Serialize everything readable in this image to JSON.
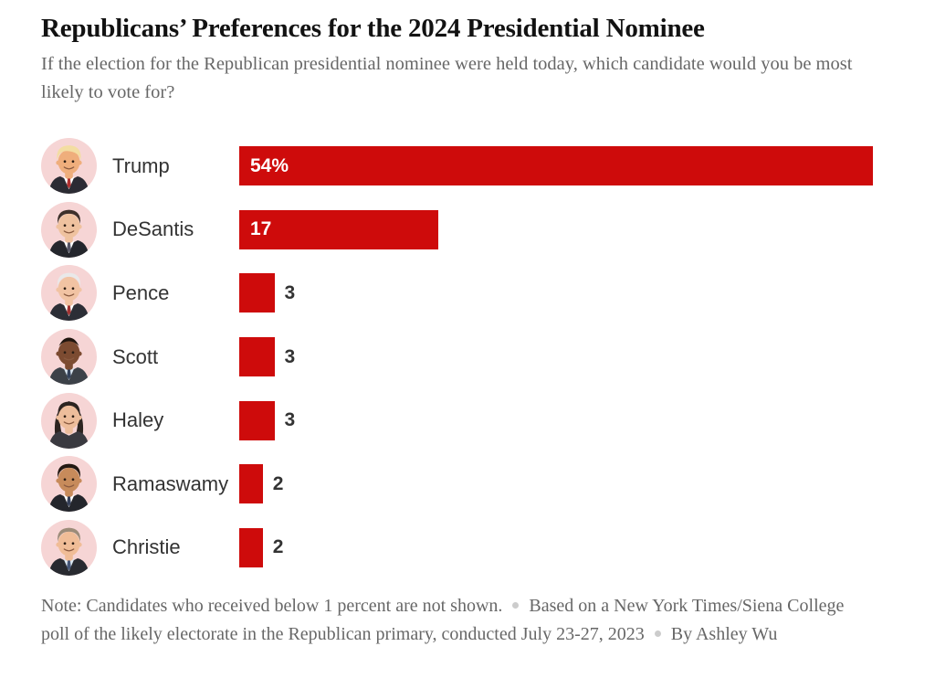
{
  "header": {
    "title": "Republicans’ Preferences for the 2024 Presidential Nominee",
    "subtitle": "If the election for the Republican presidential nominee were held today, which candidate would you be most likely to vote for?"
  },
  "chart_data": {
    "type": "bar",
    "orientation": "horizontal",
    "categories": [
      "Trump",
      "DeSantis",
      "Pence",
      "Scott",
      "Haley",
      "Ramaswamy",
      "Christie"
    ],
    "values": [
      54,
      17,
      3,
      3,
      3,
      2,
      2
    ],
    "value_labels": [
      "54%",
      "17",
      "3",
      "3",
      "3",
      "2",
      "2"
    ],
    "value_label_inside": [
      true,
      true,
      false,
      false,
      false,
      false,
      false
    ],
    "xlim": [
      0,
      54
    ],
    "bar_color": "#ce0b0b",
    "grid": false,
    "legend": false,
    "avatar_background": "#f6d5d5"
  },
  "candidates": [
    {
      "name": "Trump",
      "display": "54%",
      "avatar": {
        "style": "swoop",
        "skin": "#efae7c",
        "hair": "#f3dda2",
        "suit": "#2b2b33",
        "shirt": "#ffffff",
        "tie": "#b03030"
      }
    },
    {
      "name": "DeSantis",
      "display": "17",
      "avatar": {
        "style": "side",
        "skin": "#efc29f",
        "hair": "#3e312a",
        "suit": "#24262c",
        "shirt": "#ffffff",
        "tie": "#555566"
      }
    },
    {
      "name": "Pence",
      "display": "3",
      "avatar": {
        "style": "side",
        "skin": "#f1c3a3",
        "hair": "#e9e9e9",
        "suit": "#2c2e36",
        "shirt": "#ffffff",
        "tie": "#a33333"
      }
    },
    {
      "name": "Scott",
      "display": "3",
      "avatar": {
        "style": "bald",
        "skin": "#7c4b31",
        "hair": "#20150e",
        "suit": "#3c4148",
        "shirt": "#d7e4ef",
        "tie": "#33415a"
      }
    },
    {
      "name": "Haley",
      "display": "3",
      "avatar": {
        "style": "long",
        "skin": "#edbd9b",
        "hair": "#2c2420",
        "suit": "#3a3a40",
        "shirt": "",
        "tie": ""
      }
    },
    {
      "name": "Ramaswamy",
      "display": "2",
      "avatar": {
        "style": "side",
        "skin": "#c78b5b",
        "hair": "#231912",
        "suit": "#24262c",
        "shirt": "#ffffff",
        "tie": "#35405a"
      }
    },
    {
      "name": "Christie",
      "display": "2",
      "avatar": {
        "style": "side",
        "skin": "#f0bd97",
        "hair": "#9c8c79",
        "suit": "#282a30",
        "shirt": "#d9e6f0",
        "tie": "#445577"
      }
    }
  ],
  "footer": {
    "segments": [
      "Note: Candidates who received below 1 percent are not shown.",
      "Based on a New York Times/Siena College poll of the likely electorate in the Republican primary, conducted July 23-27, 2023",
      "By Ashley Wu"
    ],
    "separator": "bullet-dot"
  }
}
